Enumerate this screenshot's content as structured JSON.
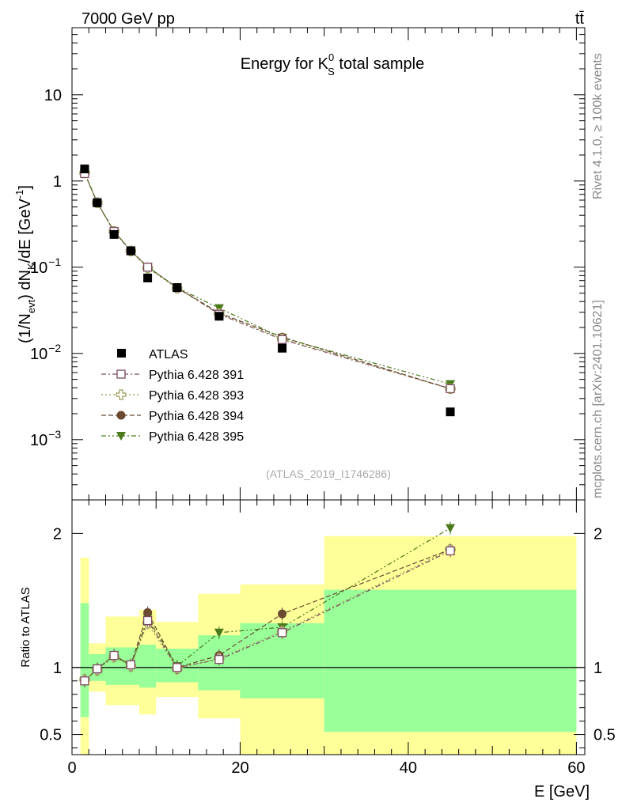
{
  "header": {
    "left_label": "7000 GeV pp",
    "right_label": "tt̄",
    "side_label_top": "Rivet 4.1.0, ≥ 100k events",
    "side_label_bottom": "mcplots.cern.ch [arXiv:2401.10621]"
  },
  "chart_data": [
    {
      "id": "main",
      "type": "scatter",
      "title_prefix": "Energy for K",
      "title_sup": "0",
      "title_sub": "S",
      "title_suffix": " total sample",
      "watermark": "(ATLAS_2019_I1746286)",
      "ylabel": "(1/N_evt) dN_K/dE [GeV^-1]",
      "ylabel_parts": {
        "a": "(1/N",
        "a_sub": "evt",
        "b": ") dN",
        "b_sub": "K",
        "c": "/dE [GeV",
        "c_sup": "-1",
        "d": "]"
      },
      "yscale": "log",
      "ylim": [
        0.0002,
        60
      ],
      "xlim": [
        0,
        61
      ],
      "ytick_labels": [
        {
          "value": 10,
          "base": "10",
          "exp": ""
        },
        {
          "value": 1,
          "base": "1",
          "exp": ""
        },
        {
          "value": 0.1,
          "base": "10",
          "exp": "−1"
        },
        {
          "value": 0.01,
          "base": "10",
          "exp": "−2"
        },
        {
          "value": 0.001,
          "base": "10",
          "exp": "−3"
        }
      ],
      "x": [
        1.5,
        3,
        5,
        7,
        9,
        12.5,
        17.5,
        25,
        45
      ],
      "series": [
        {
          "name": "ATLAS",
          "marker": "square",
          "color": "#000000",
          "values": [
            1.38,
            0.56,
            0.24,
            0.155,
            0.075,
            0.058,
            0.027,
            0.0115,
            0.0021
          ]
        },
        {
          "name": "Pythia 6.428 391",
          "marker": "open-square",
          "color": "#7a4a5e",
          "values": [
            1.22,
            0.56,
            0.26,
            0.155,
            0.1,
            0.058,
            0.0285,
            0.0145,
            0.0039
          ]
        },
        {
          "name": "Pythia 6.428 393",
          "marker": "open-cross",
          "color": "#9a9a55",
          "values": [
            1.24,
            0.56,
            0.26,
            0.154,
            0.098,
            0.057,
            0.029,
            0.0148,
            0.0039
          ]
        },
        {
          "name": "Pythia 6.428 394",
          "marker": "circle",
          "color": "#6a4a30",
          "values": [
            1.24,
            0.56,
            0.26,
            0.155,
            0.101,
            0.058,
            0.0295,
            0.0155,
            0.0039
          ]
        },
        {
          "name": "Pythia 6.428 395",
          "marker": "triangle-down",
          "color": "#4a7a1a",
          "values": [
            1.25,
            0.565,
            0.262,
            0.156,
            0.101,
            0.058,
            0.0335,
            0.0152,
            0.0044
          ]
        }
      ]
    },
    {
      "id": "ratio",
      "type": "scatter",
      "ylabel": "Ratio to ATLAS",
      "xlabel": "E [GeV]",
      "ylim": [
        0.35,
        2.25
      ],
      "xlim": [
        0,
        61
      ],
      "yticks": [
        0.5,
        1,
        2
      ],
      "ytick_labels": [
        "0.5",
        "1",
        "2"
      ],
      "xticks": [
        0,
        20,
        40,
        60
      ],
      "xtick_labels": [
        "0",
        "20",
        "40",
        "60"
      ],
      "reference_line": 1,
      "bands": [
        {
          "x0": 1,
          "x1": 2,
          "yellow": [
            0.35,
            1.82
          ],
          "green": [
            0.63,
            1.48
          ]
        },
        {
          "x0": 2,
          "x1": 4,
          "yellow": [
            0.82,
            1.18
          ],
          "green": [
            0.9,
            1.1
          ]
        },
        {
          "x0": 4,
          "x1": 8,
          "yellow": [
            0.72,
            1.38
          ],
          "green": [
            0.87,
            1.15
          ]
        },
        {
          "x0": 8,
          "x1": 10,
          "yellow": [
            0.65,
            1.43
          ],
          "green": [
            0.85,
            1.17
          ]
        },
        {
          "x0": 10,
          "x1": 15,
          "yellow": [
            0.78,
            1.34
          ],
          "green": [
            0.89,
            1.14
          ]
        },
        {
          "x0": 15,
          "x1": 20,
          "yellow": [
            0.62,
            1.55
          ],
          "green": [
            0.83,
            1.24
          ]
        },
        {
          "x0": 20,
          "x1": 30,
          "yellow": [
            0.35,
            1.62
          ],
          "green": [
            0.77,
            1.33
          ]
        },
        {
          "x0": 30,
          "x1": 60,
          "yellow": [
            0.35,
            1.98
          ],
          "green": [
            0.52,
            1.58
          ]
        }
      ],
      "x": [
        1.5,
        3,
        5,
        7,
        9,
        12.5,
        17.5,
        25,
        45
      ],
      "series": [
        {
          "name": "Pythia 6.428 391",
          "marker": "open-square",
          "color": "#7a4a5e",
          "values": [
            0.9,
            0.99,
            1.09,
            1.02,
            1.35,
            1.0,
            1.06,
            1.26,
            1.87
          ]
        },
        {
          "name": "Pythia 6.428 393",
          "marker": "open-cross",
          "color": "#9a9a55",
          "values": [
            0.91,
            0.98,
            1.08,
            1.01,
            1.33,
            0.99,
            1.07,
            1.27,
            1.88
          ]
        },
        {
          "name": "Pythia 6.428 394",
          "marker": "circle",
          "color": "#6a4a30",
          "values": [
            0.9,
            0.99,
            1.09,
            1.02,
            1.41,
            1.0,
            1.09,
            1.4,
            1.88
          ]
        },
        {
          "name": "Pythia 6.428 395",
          "marker": "triangle-down",
          "color": "#4a7a1a",
          "values": [
            0.9,
            0.99,
            1.09,
            1.01,
            1.37,
            1.01,
            1.26,
            1.3,
            2.04
          ]
        }
      ]
    }
  ]
}
